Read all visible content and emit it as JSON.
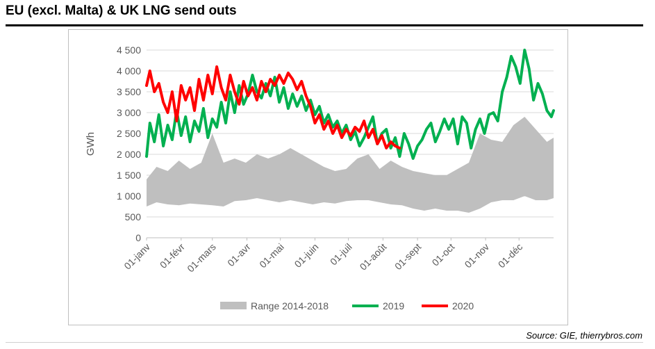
{
  "title": "EU (excl. Malta) & UK LNG send outs",
  "source": "Source: GIE, thierrybros.com",
  "chart_data": {
    "type": "line",
    "ylabel": "GWh",
    "ylim": [
      0,
      4500
    ],
    "yticks": [
      0,
      500,
      1000,
      1500,
      2000,
      2500,
      3000,
      3500,
      4000,
      4500
    ],
    "ytick_labels": [
      "0",
      "500",
      "1 000",
      "1 500",
      "2 000",
      "2 500",
      "3 000",
      "3 500",
      "4 000",
      "4 500"
    ],
    "xlim": [
      1,
      366
    ],
    "xticks": [
      1,
      32,
      60,
      91,
      121,
      152,
      182,
      213,
      244,
      274,
      305,
      335
    ],
    "xtick_labels": [
      "01-janv",
      "01-févr",
      "01-mars",
      "01-avr",
      "01-mai",
      "01-juin",
      "01-juil",
      "01-août",
      "01-sept",
      "01-oct",
      "01-nov",
      "01-déc"
    ],
    "grid": true,
    "legend_position": "bottom",
    "legend": [
      {
        "label": "Range 2014-2018",
        "color": "#bfbfbf",
        "kind": "area"
      },
      {
        "label": "2019",
        "color": "#00b050",
        "kind": "line"
      },
      {
        "label": "2020",
        "color": "#ff0000",
        "kind": "line"
      }
    ],
    "range_x": [
      1,
      10,
      20,
      30,
      40,
      50,
      60,
      70,
      80,
      90,
      100,
      110,
      120,
      130,
      140,
      150,
      160,
      170,
      180,
      190,
      200,
      210,
      220,
      230,
      240,
      250,
      260,
      270,
      280,
      290,
      300,
      310,
      320,
      330,
      340,
      350,
      360,
      366
    ],
    "range_low": [
      750,
      850,
      800,
      780,
      820,
      800,
      780,
      750,
      880,
      900,
      950,
      900,
      850,
      900,
      850,
      800,
      850,
      820,
      880,
      900,
      900,
      850,
      800,
      780,
      700,
      650,
      700,
      650,
      650,
      600,
      700,
      850,
      900,
      900,
      1000,
      900,
      900,
      950
    ],
    "range_high": [
      1400,
      1700,
      1600,
      1850,
      1650,
      1800,
      2500,
      1800,
      1900,
      1800,
      2000,
      1900,
      2000,
      2150,
      2000,
      1850,
      1700,
      1600,
      1650,
      1900,
      2000,
      1650,
      1850,
      1700,
      1600,
      1550,
      1500,
      1500,
      1650,
      1800,
      2500,
      2350,
      2300,
      2700,
      2900,
      2600,
      2300,
      2400
    ],
    "series": [
      {
        "name": "2019",
        "color": "#00b050",
        "x": [
          1,
          4,
          8,
          12,
          16,
          20,
          24,
          28,
          32,
          36,
          40,
          44,
          48,
          52,
          56,
          60,
          64,
          68,
          72,
          76,
          80,
          84,
          88,
          92,
          96,
          100,
          104,
          108,
          112,
          116,
          120,
          124,
          128,
          132,
          136,
          140,
          144,
          148,
          152,
          156,
          160,
          164,
          168,
          172,
          176,
          180,
          184,
          188,
          192,
          196,
          200,
          204,
          208,
          212,
          216,
          220,
          224,
          228,
          232,
          236,
          240,
          244,
          248,
          252,
          256,
          260,
          264,
          268,
          272,
          276,
          280,
          284,
          288,
          292,
          296,
          300,
          304,
          308,
          312,
          316,
          320,
          324,
          328,
          332,
          336,
          340,
          344,
          348,
          352,
          356,
          360,
          364,
          366
        ],
        "y": [
          1950,
          2750,
          2300,
          2950,
          2200,
          2700,
          2350,
          3050,
          2450,
          2900,
          2300,
          2800,
          2550,
          3100,
          2400,
          2850,
          2650,
          3250,
          2750,
          3500,
          3000,
          3650,
          3200,
          3450,
          3900,
          3500,
          3350,
          3700,
          3400,
          3850,
          3250,
          3600,
          3100,
          3450,
          3150,
          3400,
          3050,
          3300,
          2950,
          3150,
          2750,
          2950,
          2650,
          2800,
          2500,
          2700,
          2350,
          2550,
          2200,
          2400,
          2650,
          2900,
          2250,
          2500,
          2600,
          2150,
          2400,
          1950,
          2500,
          2250,
          1900,
          2200,
          2350,
          2600,
          2750,
          2300,
          2550,
          2850,
          2600,
          2850,
          2250,
          2900,
          2750,
          2150,
          2600,
          2850,
          2500,
          2950,
          3000,
          2800,
          3500,
          3850,
          4350,
          4100,
          3700,
          4500,
          4050,
          3300,
          3700,
          3450,
          3050,
          2900,
          3050
        ]
      },
      {
        "name": "2020",
        "color": "#ff0000",
        "x": [
          1,
          4,
          8,
          12,
          16,
          20,
          24,
          28,
          32,
          36,
          40,
          44,
          48,
          52,
          56,
          60,
          64,
          68,
          72,
          76,
          80,
          84,
          88,
          92,
          96,
          100,
          104,
          108,
          112,
          116,
          120,
          124,
          128,
          132,
          136,
          140,
          144,
          148,
          152,
          156,
          160,
          164,
          168,
          172,
          176,
          180,
          184,
          188,
          192,
          196,
          200,
          204,
          208,
          212,
          216,
          220,
          224,
          228
        ],
        "y": [
          3650,
          4000,
          3500,
          3700,
          3250,
          3000,
          3500,
          2800,
          3650,
          3300,
          3600,
          3050,
          3800,
          3300,
          3900,
          3450,
          4100,
          3600,
          3300,
          3900,
          3500,
          3200,
          3750,
          3400,
          3600,
          3300,
          3750,
          3500,
          3800,
          3650,
          3900,
          3700,
          3950,
          3800,
          3550,
          3750,
          3400,
          3150,
          2750,
          2950,
          2600,
          2800,
          2500,
          2700,
          2400,
          2600,
          2450,
          2650,
          2550,
          2800,
          2400,
          2600,
          2250,
          2450,
          2150,
          2300,
          2200,
          2150
        ]
      }
    ]
  }
}
